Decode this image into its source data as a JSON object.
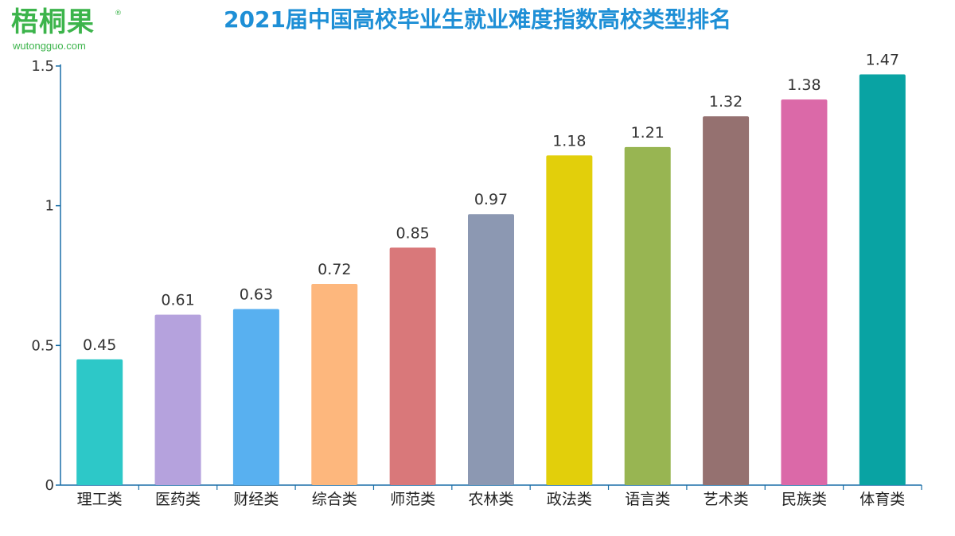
{
  "logo": {
    "name": "梧桐果",
    "reg": "®",
    "url": "wutongguo.com"
  },
  "chart_data": {
    "type": "bar",
    "title": "2021届中国高校毕业生就业难度指数高校类型排名",
    "categories": [
      "理工类",
      "医药类",
      "财经类",
      "综合类",
      "师范类",
      "农林类",
      "政法类",
      "语言类",
      "艺术类",
      "民族类",
      "体育类"
    ],
    "values": [
      0.45,
      0.61,
      0.63,
      0.72,
      0.85,
      0.97,
      1.18,
      1.21,
      1.32,
      1.38,
      1.47
    ],
    "value_labels": [
      "0.45",
      "0.61",
      "0.63",
      "0.72",
      "0.85",
      "0.97",
      "1.18",
      "1.21",
      "1.32",
      "1.38",
      "1.47"
    ],
    "colors": [
      "#2dc8c8",
      "#b5a2dd",
      "#58b0f0",
      "#fdb77d",
      "#d9787a",
      "#8c98b2",
      "#e2cf0b",
      "#98b552",
      "#957170",
      "#db69a8",
      "#09a3a3"
    ],
    "ylim": [
      0,
      1.5
    ],
    "yticks": [
      0,
      0.5,
      1,
      1.5
    ],
    "ytick_labels": [
      "0",
      "0.5",
      "1",
      "1.5"
    ],
    "axis_color": "#1a6fa8",
    "grid": false,
    "xlabel": "",
    "ylabel": ""
  }
}
